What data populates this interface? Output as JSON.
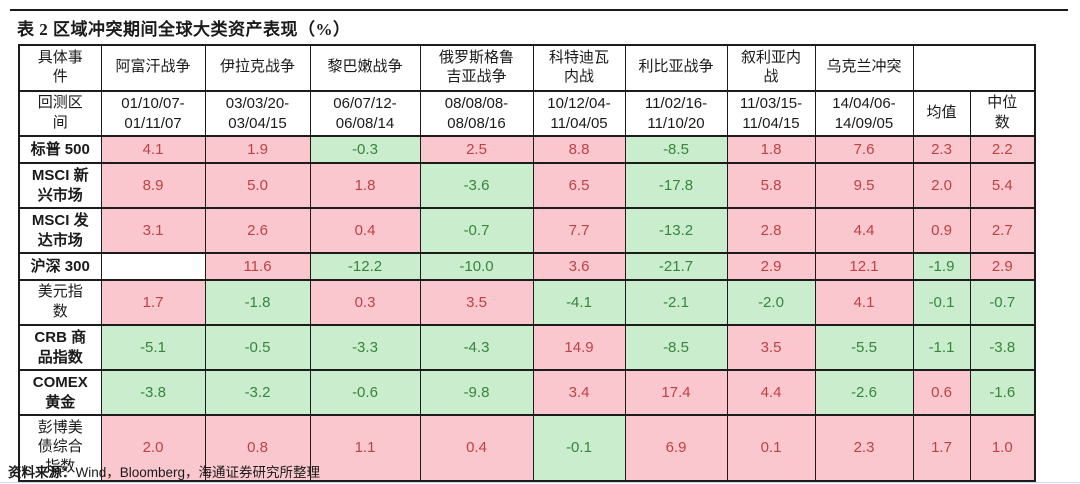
{
  "title": "表 2 区域冲突期间全球大类资产表现（%）",
  "source": {
    "label": "资料来源：",
    "text": "Wind，Bloomberg，海通证券研究所整理"
  },
  "colors": {
    "positive_bg": "#f9c7cd",
    "positive_text": "#bf4145",
    "negative_bg": "#c9edcd",
    "negative_text": "#37853d",
    "border": "#1c1c1c"
  },
  "table": {
    "corner_row1": "具体事\n件",
    "corner_row2": "回测区\n间",
    "events": [
      "阿富汗战争",
      "伊拉克战争",
      "黎巴嫩战争",
      "俄罗斯格鲁\n吉亚战争",
      "科特迪瓦\n内战",
      "利比亚战争",
      "叙利亚内\n战",
      "乌克兰冲突"
    ],
    "periods": [
      "01/10/07-\n01/11/07",
      "03/03/20-\n03/04/15",
      "06/07/12-\n06/08/14",
      "08/08/08-\n08/08/16",
      "10/12/04-\n11/04/05",
      "11/02/16-\n11/10/20",
      "11/03/15-\n11/04/15",
      "14/04/06-\n14/09/05"
    ],
    "stat_headers": [
      "均值",
      "中位\n数"
    ],
    "rows": [
      {
        "label": "标普 500",
        "values": [
          "4.1",
          "1.9",
          "-0.3",
          "2.5",
          "8.8",
          "-8.5",
          "1.8",
          "7.6",
          "2.3",
          "2.2"
        ]
      },
      {
        "label": "MSCI 新\n兴市场",
        "values": [
          "8.9",
          "5.0",
          "1.8",
          "-3.6",
          "6.5",
          "-17.8",
          "5.8",
          "9.5",
          "2.0",
          "5.4"
        ]
      },
      {
        "label": "MSCI 发\n达市场",
        "values": [
          "3.1",
          "2.6",
          "0.4",
          "-0.7",
          "7.7",
          "-13.2",
          "2.8",
          "4.4",
          "0.9",
          "2.7"
        ]
      },
      {
        "label": "沪深 300",
        "values": [
          "",
          "11.6",
          "-12.2",
          "-10.0",
          "3.6",
          "-21.7",
          "2.9",
          "12.1",
          "-1.9",
          "2.9"
        ]
      },
      {
        "label": "美元指\n数",
        "values": [
          "1.7",
          "-1.8",
          "0.3",
          "3.5",
          "-4.1",
          "-2.1",
          "-2.0",
          "4.1",
          "-0.1",
          "-0.7"
        ]
      },
      {
        "label": "CRB 商\n品指数",
        "values": [
          "-5.1",
          "-0.5",
          "-3.3",
          "-4.3",
          "14.9",
          "-8.5",
          "3.5",
          "-5.5",
          "-1.1",
          "-3.8"
        ]
      },
      {
        "label": "COMEX\n黄金",
        "values": [
          "-3.8",
          "-3.2",
          "-0.6",
          "-9.8",
          "3.4",
          "17.4",
          "4.4",
          "-2.6",
          "0.6",
          "-1.6"
        ]
      },
      {
        "label": "彭博美\n债综合\n指数",
        "values": [
          "2.0",
          "0.8",
          "1.1",
          "0.4",
          "-0.1",
          "6.9",
          "0.1",
          "2.3",
          "1.7",
          "1.0"
        ]
      }
    ]
  }
}
